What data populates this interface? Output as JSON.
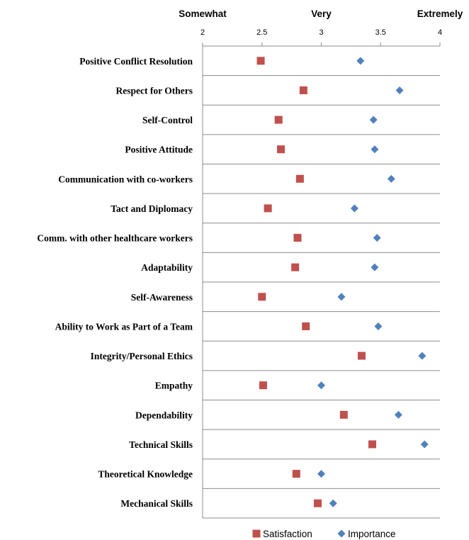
{
  "chart_data": {
    "type": "scatter",
    "orientation": "horizontal",
    "xlim": [
      2,
      4
    ],
    "x_ticks": [
      2,
      2.5,
      3,
      3.5,
      4
    ],
    "x_tick_labels": [
      "2",
      "2.5",
      "3",
      "3.5",
      "4"
    ],
    "qualitative_labels": [
      {
        "text": "Somewhat",
        "value": 2
      },
      {
        "text": "Very",
        "value": 3
      },
      {
        "text": "Extremely",
        "value": 4
      }
    ],
    "categories": [
      "Positive Conflict Resolution",
      "Respect for Others",
      "Self-Control",
      "Positive Attitude",
      "Communication with co-workers",
      "Tact and Diplomacy",
      "Comm. with other healthcare workers",
      "Adaptability",
      "Self-Awareness",
      "Ability to Work as Part of a Team",
      "Integrity/Personal Ethics",
      "Empathy",
      "Dependability",
      "Technical Skills",
      "Theoretical Knowledge",
      "Mechanical Skills"
    ],
    "series": [
      {
        "name": "Satisfaction",
        "marker": "square",
        "color": "#c0504d",
        "values": [
          2.49,
          2.85,
          2.64,
          2.66,
          2.82,
          2.55,
          2.8,
          2.78,
          2.5,
          2.87,
          3.34,
          2.51,
          3.19,
          3.43,
          2.79,
          2.97
        ]
      },
      {
        "name": "Importance",
        "marker": "diamond",
        "color": "#4f81bd",
        "values": [
          3.33,
          3.66,
          3.44,
          3.45,
          3.59,
          3.28,
          3.47,
          3.45,
          3.17,
          3.48,
          3.85,
          3.0,
          3.65,
          3.87,
          3.0,
          3.1
        ]
      }
    ],
    "grid": {
      "horizontal": true,
      "vertical": false
    },
    "legend_position": "bottom"
  }
}
